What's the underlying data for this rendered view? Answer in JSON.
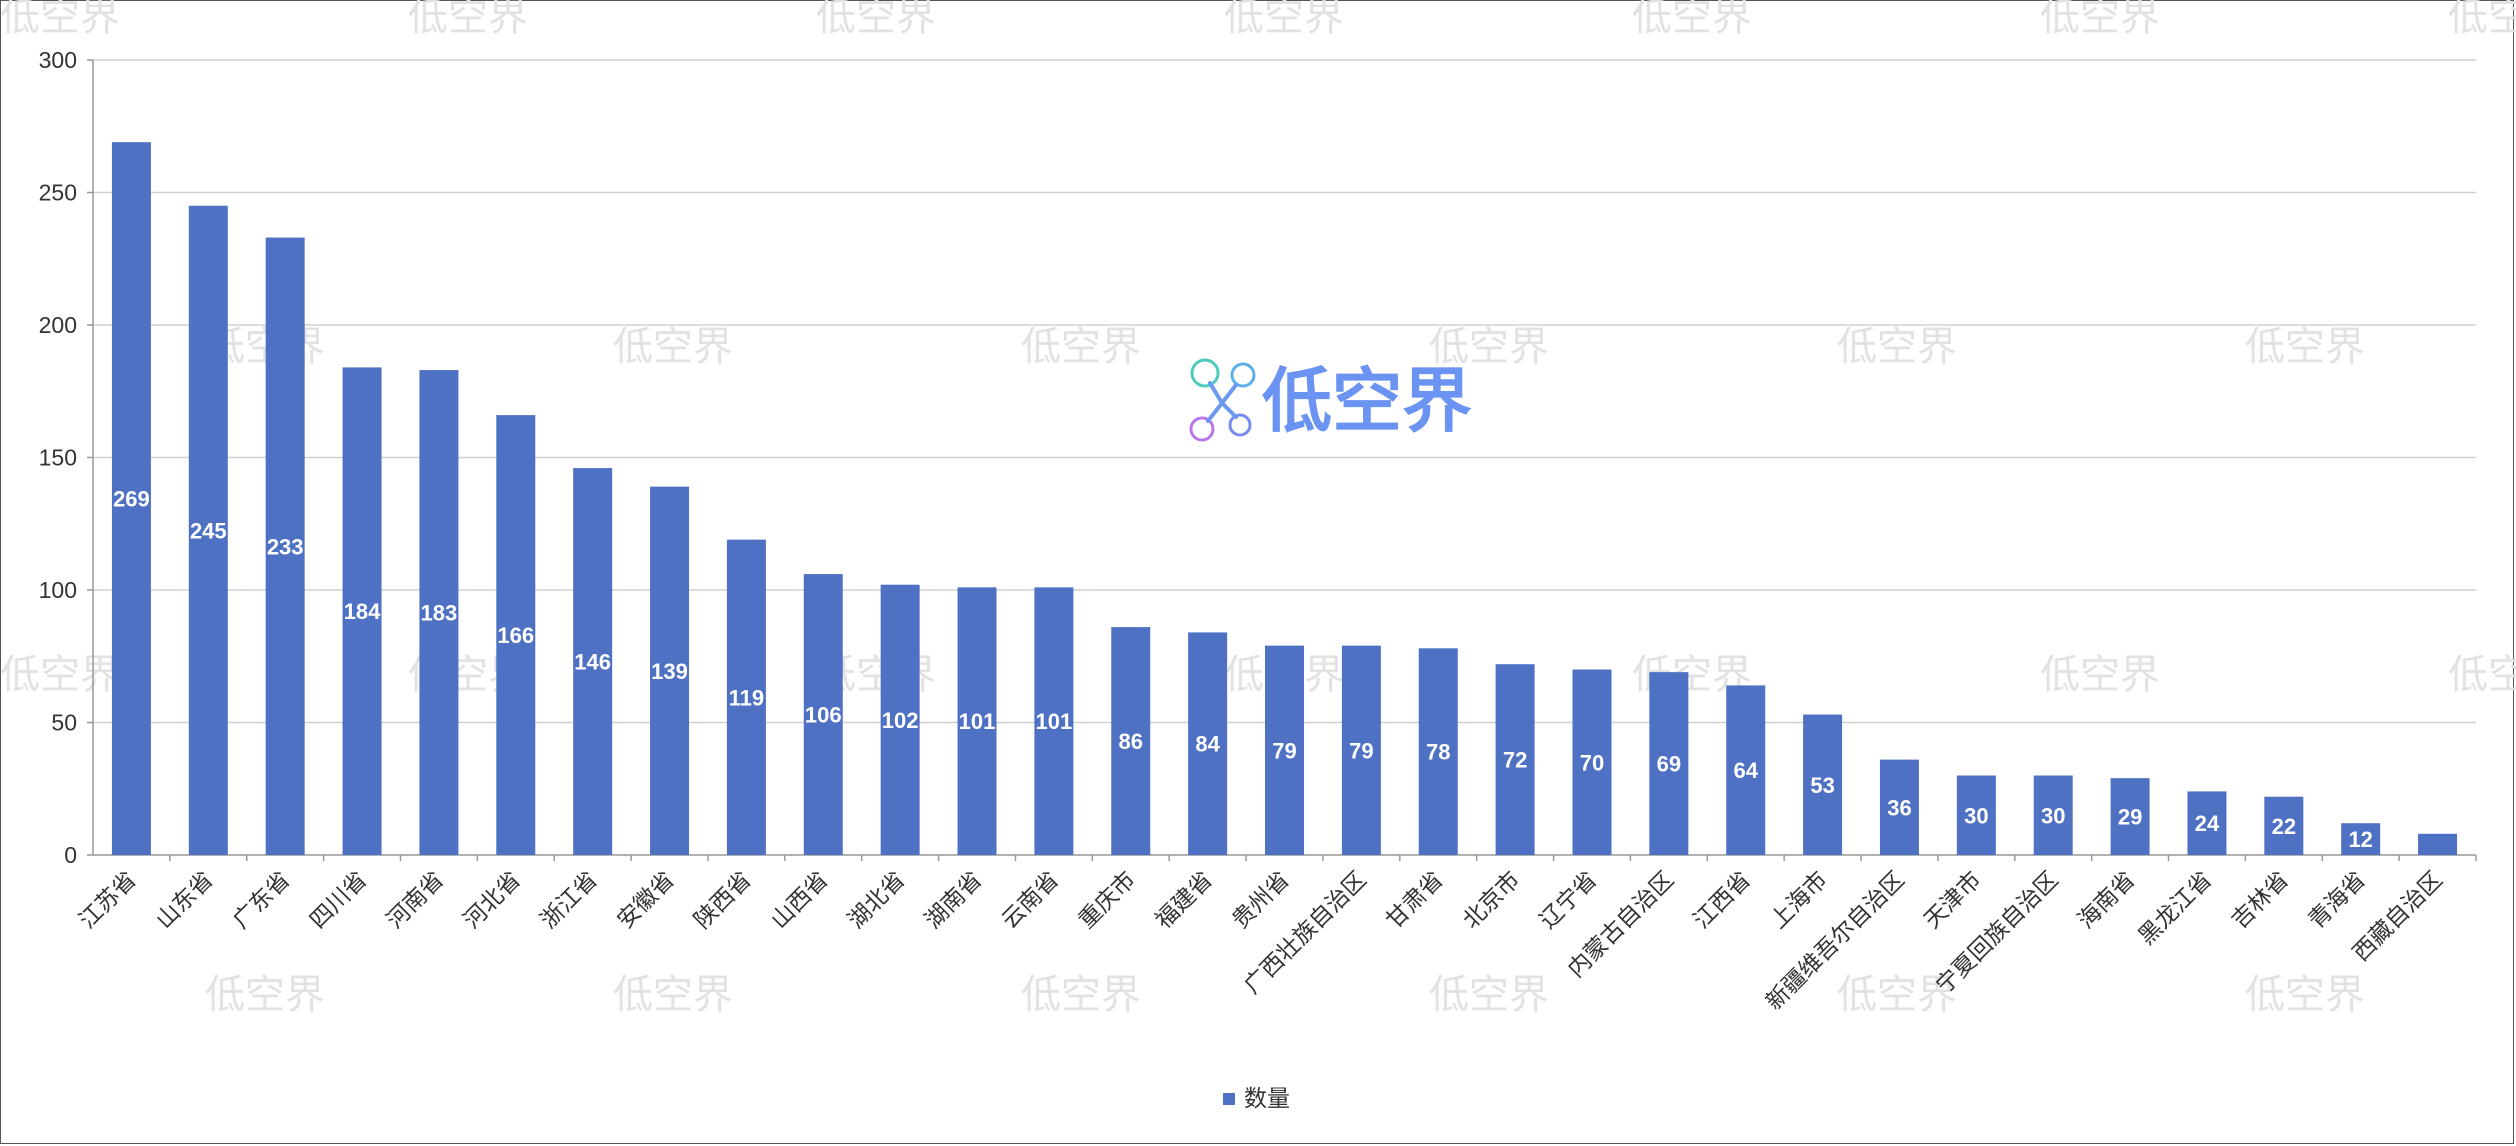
{
  "colors": {
    "bar": "#4f71c4",
    "grid": "#d0d0d0",
    "axis": "#999999",
    "watermark": "#e2e2e2",
    "logo": "#6a93f2"
  },
  "watermark": {
    "text": "低空界",
    "logo_icon": "drone-logo-icon"
  },
  "chart_data": {
    "type": "bar",
    "title": "",
    "xlabel": "",
    "ylabel": "",
    "ylim": [
      0,
      300
    ],
    "yticks": [
      0,
      50,
      100,
      150,
      200,
      250,
      300
    ],
    "grid": true,
    "legend_position": "bottom",
    "categories": [
      "江苏省",
      "山东省",
      "广东省",
      "四川省",
      "河南省",
      "河北省",
      "浙江省",
      "安徽省",
      "陕西省",
      "山西省",
      "湖北省",
      "湖南省",
      "云南省",
      "重庆市",
      "福建省",
      "贵州省",
      "广西壮族自治区",
      "甘肃省",
      "北京市",
      "辽宁省",
      "内蒙古自治区",
      "江西省",
      "上海市",
      "新疆维吾尔自治区",
      "天津市",
      "宁夏回族自治区",
      "海南省",
      "黑龙江省",
      "吉林省",
      "青海省",
      "西藏自治区"
    ],
    "series": [
      {
        "name": "数量",
        "values": [
          269,
          245,
          233,
          184,
          183,
          166,
          146,
          139,
          119,
          106,
          102,
          101,
          101,
          86,
          84,
          79,
          79,
          78,
          72,
          70,
          69,
          64,
          53,
          36,
          30,
          30,
          29,
          24,
          22,
          12,
          8
        ],
        "data_labels": [
          "269",
          "245",
          "233",
          "184",
          "183",
          "166",
          "146",
          "139",
          "119",
          "106",
          "102",
          "101",
          "101",
          "86",
          "84",
          "79",
          "79",
          "78",
          "72",
          "70",
          "69",
          "64",
          "53",
          "36",
          "30",
          "30",
          "29",
          "24",
          "22",
          "12",
          ""
        ]
      }
    ]
  }
}
